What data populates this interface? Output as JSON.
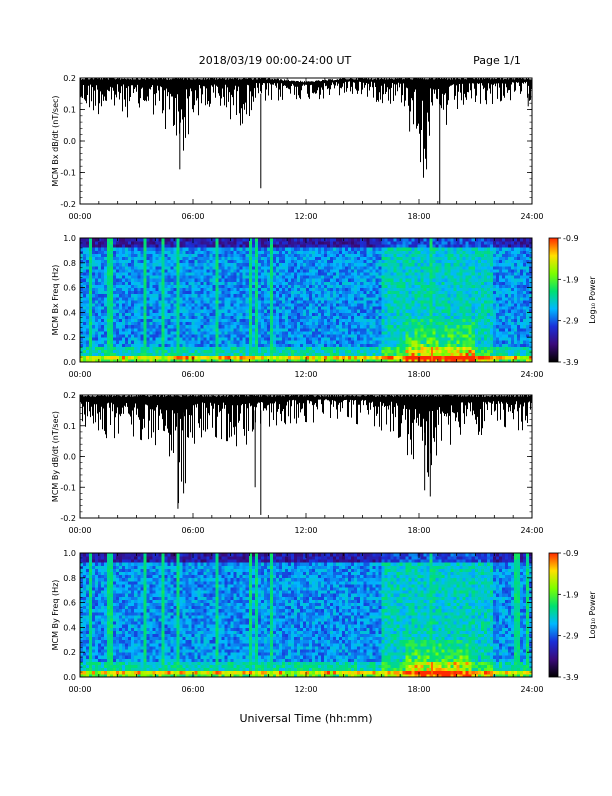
{
  "header": {
    "title": "2018/03/19   00:00-24:00 UT",
    "page": "Page 1/1"
  },
  "footer": {
    "xlabel": "Universal Time (hh:mm)"
  },
  "colors": {
    "trace": "#000000",
    "colormap": [
      "#000000",
      "#3a0a7a",
      "#1a2fd8",
      "#00b8ff",
      "#00e070",
      "#7cff00",
      "#ffe000",
      "#ff2a00"
    ]
  },
  "chart_data": [
    {
      "type": "line",
      "ylabel": "MCM Bx dB/dt (nT/sec)",
      "ylim": [
        -0.2,
        0.2
      ],
      "yticks": [
        "0.2",
        "0.1",
        "0.0",
        "-0.1",
        "-0.2"
      ],
      "xticks": [
        "00:00",
        "06:00",
        "12:00",
        "18:00",
        "24:00"
      ],
      "x_range_hours": [
        0,
        24
      ],
      "series": [
        {
          "upper_envelope": [
            [
              0,
              0.2
            ],
            [
              2,
              0.2
            ],
            [
              4,
              0.2
            ],
            [
              6,
              0.2
            ],
            [
              8,
              0.2
            ],
            [
              10,
              0.2
            ],
            [
              12,
              0.19
            ],
            [
              14,
              0.2
            ],
            [
              16,
              0.2
            ],
            [
              18,
              0.2
            ],
            [
              20,
              0.2
            ],
            [
              22,
              0.2
            ],
            [
              24,
              0.2
            ]
          ],
          "lower_envelope": [
            [
              0,
              0.11
            ],
            [
              1,
              0.1
            ],
            [
              2,
              0.1
            ],
            [
              3,
              0.09
            ],
            [
              4,
              0.1
            ],
            [
              4.8,
              0.02
            ],
            [
              5.3,
              -0.05
            ],
            [
              5.8,
              0.06
            ],
            [
              6.5,
              0.1
            ],
            [
              7.5,
              0.1
            ],
            [
              8.5,
              0.07
            ],
            [
              9.5,
              0.13
            ],
            [
              10,
              0.12
            ],
            [
              11,
              0.14
            ],
            [
              12,
              0.14
            ],
            [
              13,
              0.14
            ],
            [
              14,
              0.15
            ],
            [
              15,
              0.15
            ],
            [
              16,
              0.13
            ],
            [
              17,
              0.13
            ],
            [
              17.5,
              0.1
            ],
            [
              18.2,
              -0.08
            ],
            [
              18.6,
              0.04
            ],
            [
              19.2,
              0.02
            ],
            [
              19.8,
              0.1
            ],
            [
              21,
              0.12
            ],
            [
              22,
              0.13
            ],
            [
              24,
              0.14
            ]
          ],
          "spikes": [
            [
              5.3,
              -0.09
            ],
            [
              9.6,
              -0.15
            ],
            [
              17.5,
              0.03
            ],
            [
              18.4,
              -0.09
            ],
            [
              19.1,
              -0.2
            ],
            [
              23.8,
              0.11
            ]
          ]
        }
      ]
    },
    {
      "type": "heatmap",
      "ylabel": "MCM Bx Freq (Hz)",
      "ylim": [
        0,
        1.0
      ],
      "yticks": [
        "1.0",
        "0.8",
        "0.6",
        "0.4",
        "0.2",
        "0.0"
      ],
      "xticks": [
        "00:00",
        "06:00",
        "12:00",
        "18:00",
        "24:00"
      ],
      "colorbar": {
        "label": "Log₁₀ Power",
        "ticks": [
          "-0.9",
          "-1.9",
          "-2.9",
          "-3.9"
        ],
        "range": [
          -3.9,
          -0.9
        ]
      },
      "harmonic_freqs_hz": [
        0.05,
        0.1,
        0.15,
        0.2,
        0.25,
        0.3,
        0.35,
        0.4,
        0.45,
        0.5,
        0.55,
        0.6,
        0.65,
        0.7,
        0.75,
        0.8,
        0.85,
        0.9
      ],
      "broadband_events_hours": [
        0.5,
        1.6,
        3.4,
        4.4,
        5.2,
        7.3,
        9.1,
        9.3,
        10.1,
        18.7
      ],
      "enhancement": {
        "hours": [
          17.2,
          21.0
        ],
        "freq_hz": [
          0.0,
          0.35
        ]
      }
    },
    {
      "type": "line",
      "ylabel": "MCM By dB/dt (nT/sec)",
      "ylim": [
        -0.2,
        0.2
      ],
      "yticks": [
        "0.2",
        "0.1",
        "0.0",
        "-0.1",
        "-0.2"
      ],
      "xticks": [
        "00:00",
        "06:00",
        "12:00",
        "18:00",
        "24:00"
      ],
      "x_range_hours": [
        0,
        24
      ],
      "series": [
        {
          "upper_envelope": [
            [
              0,
              0.2
            ],
            [
              4,
              0.2
            ],
            [
              8,
              0.2
            ],
            [
              12,
              0.2
            ],
            [
              16,
              0.2
            ],
            [
              20,
              0.2
            ],
            [
              24,
              0.2
            ]
          ],
          "lower_envelope": [
            [
              0,
              0.1
            ],
            [
              1,
              0.08
            ],
            [
              2,
              0.08
            ],
            [
              3,
              0.06
            ],
            [
              4,
              0.06
            ],
            [
              4.8,
              0.0
            ],
            [
              5.3,
              -0.12
            ],
            [
              5.8,
              0.02
            ],
            [
              6.5,
              0.08
            ],
            [
              7.5,
              0.08
            ],
            [
              8.5,
              0.05
            ],
            [
              9.6,
              0.09
            ],
            [
              11,
              0.12
            ],
            [
              12,
              0.12
            ],
            [
              13,
              0.13
            ],
            [
              14,
              0.12
            ],
            [
              15,
              0.12
            ],
            [
              16,
              0.1
            ],
            [
              17,
              0.08
            ],
            [
              17.8,
              -0.02
            ],
            [
              18.4,
              -0.06
            ],
            [
              19,
              0.02
            ],
            [
              20,
              0.08
            ],
            [
              21,
              0.08
            ],
            [
              22,
              0.1
            ],
            [
              24,
              0.1
            ]
          ],
          "spikes": [
            [
              5.2,
              -0.17
            ],
            [
              5.5,
              -0.12
            ],
            [
              9.3,
              -0.1
            ],
            [
              9.6,
              -0.19
            ],
            [
              18.3,
              -0.11
            ],
            [
              18.6,
              -0.13
            ]
          ]
        }
      ]
    },
    {
      "type": "heatmap",
      "ylabel": "MCM By Freq (Hz)",
      "ylim": [
        0,
        1.0
      ],
      "yticks": [
        "1.0",
        "0.8",
        "0.6",
        "0.4",
        "0.2",
        "0.0"
      ],
      "xticks": [
        "00:00",
        "06:00",
        "12:00",
        "18:00",
        "24:00"
      ],
      "colorbar": {
        "label": "Log₁₀ Power",
        "ticks": [
          "-0.9",
          "-1.9",
          "-2.9",
          "-3.9"
        ],
        "range": [
          -3.9,
          -0.9
        ]
      },
      "harmonic_freqs_hz": [
        0.05,
        0.1,
        0.15,
        0.2,
        0.25,
        0.3,
        0.35,
        0.4,
        0.45,
        0.5,
        0.55,
        0.6,
        0.65,
        0.7,
        0.75,
        0.8,
        0.85,
        0.9
      ],
      "broadband_events_hours": [
        0.5,
        1.6,
        3.4,
        4.4,
        5.2,
        7.3,
        9.1,
        9.3,
        10.1,
        18.7,
        23.2,
        23.8
      ],
      "enhancement": {
        "hours": [
          17.2,
          20.8
        ],
        "freq_hz": [
          0.0,
          0.3
        ]
      }
    }
  ]
}
